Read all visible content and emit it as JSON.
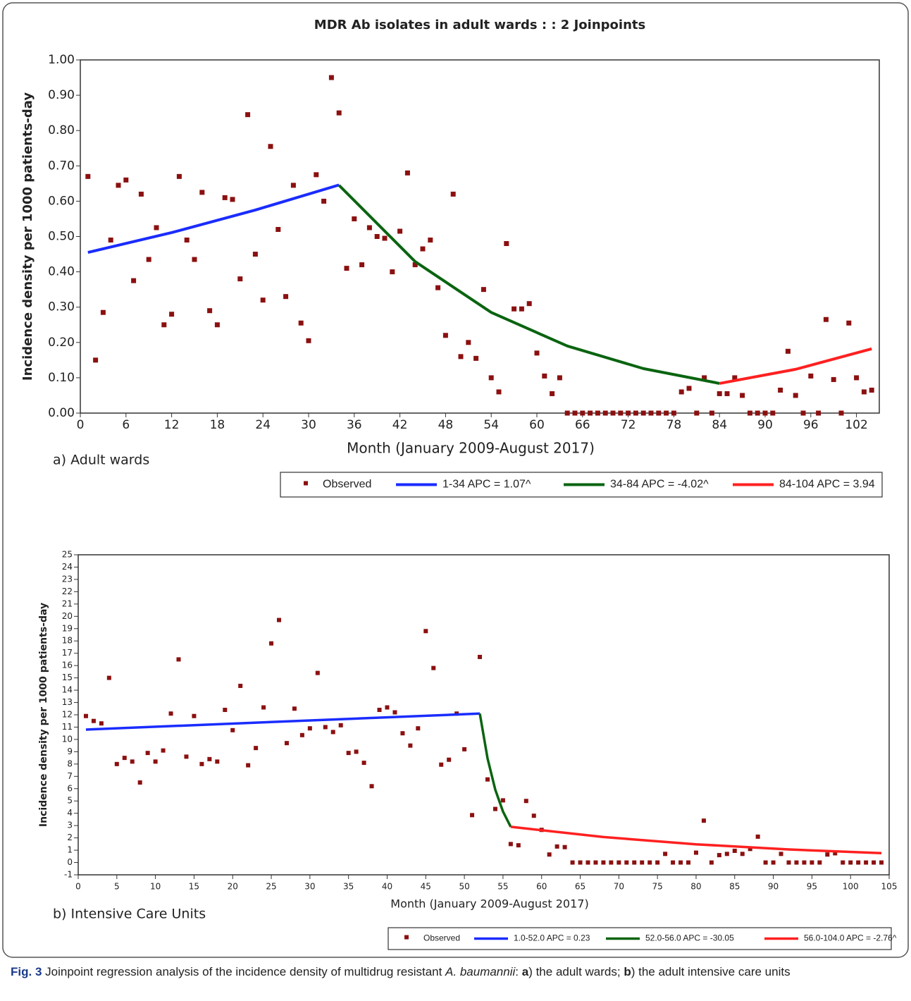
{
  "chart_data": [
    {
      "type": "scatter",
      "title": "MDR Ab isolates in adult wards : : 2 Joinpoints",
      "x_label": "Month (January 2009-August 2017)",
      "y_label": "Incidence density per 1000 patients-day",
      "panel_label": "a) Adult wards",
      "xlim": [
        0,
        105
      ],
      "ylim": [
        0,
        1
      ],
      "xticks": [
        0,
        6,
        12,
        18,
        24,
        30,
        36,
        42,
        48,
        54,
        60,
        66,
        72,
        78,
        84,
        90,
        96,
        102
      ],
      "yticks": [
        {
          "value": 0,
          "label": "0.00"
        },
        {
          "value": 0.1,
          "label": "0.10"
        },
        {
          "value": 0.2,
          "label": "0.20"
        },
        {
          "value": 0.3,
          "label": "0.30"
        },
        {
          "value": 0.4,
          "label": "0.40"
        },
        {
          "value": 0.5,
          "label": "0.50"
        },
        {
          "value": 0.6,
          "label": "0.60"
        },
        {
          "value": 0.7,
          "label": "0.70"
        },
        {
          "value": 0.8,
          "label": "0.80"
        },
        {
          "value": 0.9,
          "label": "0.90"
        },
        {
          "value": 1,
          "label": "1.00"
        }
      ],
      "series": [
        {
          "name": "Observed",
          "mode": "markers",
          "color": "#8b1010",
          "x": [
            1,
            2,
            3,
            4,
            5,
            6,
            7,
            8,
            9,
            10,
            11,
            12,
            13,
            14,
            15,
            16,
            17,
            18,
            19,
            20,
            21,
            22,
            23,
            24,
            25,
            26,
            27,
            28,
            29,
            30,
            31,
            32,
            33,
            34,
            35,
            36,
            37,
            38,
            39,
            40,
            41,
            42,
            43,
            44,
            45,
            46,
            47,
            48,
            49,
            50,
            51,
            52,
            53,
            54,
            55,
            56,
            57,
            58,
            59,
            60,
            61,
            62,
            63,
            64,
            65,
            66,
            67,
            68,
            69,
            70,
            71,
            72,
            73,
            74,
            75,
            76,
            77,
            78,
            79,
            80,
            81,
            82,
            83,
            84,
            85,
            86,
            87,
            88,
            89,
            90,
            91,
            92,
            93,
            94,
            95,
            96,
            97,
            98,
            99,
            100,
            101,
            102,
            103,
            104
          ],
          "values": [
            0.67,
            0.15,
            0.285,
            0.49,
            0.645,
            0.66,
            0.375,
            0.62,
            0.435,
            0.525,
            0.25,
            0.28,
            0.67,
            0.49,
            0.435,
            0.625,
            0.29,
            0.25,
            0.61,
            0.605,
            0.38,
            0.845,
            0.45,
            0.32,
            0.755,
            0.52,
            0.33,
            0.645,
            0.255,
            0.205,
            0.675,
            0.6,
            0.95,
            0.85,
            0.41,
            0.55,
            0.42,
            0.525,
            0.5,
            0.495,
            0.4,
            0.515,
            0.68,
            0.42,
            0.465,
            0.49,
            0.355,
            0.22,
            0.62,
            0.16,
            0.2,
            0.155,
            0.35,
            0.1,
            0.06,
            0.48,
            0.295,
            0.295,
            0.31,
            0.17,
            0.105,
            0.055,
            0.1,
            0,
            0,
            0,
            0,
            0,
            0,
            0,
            0,
            0,
            0,
            0,
            0,
            0,
            0,
            0,
            0.06,
            0.07,
            0,
            0.1,
            0,
            0.055,
            0.055,
            0.1,
            0.05,
            0,
            0,
            0,
            0,
            0.065,
            0.175,
            0.05,
            0,
            0.105,
            0,
            0.265,
            0.095,
            0,
            0.255,
            0.1,
            0.06,
            0.065
          ]
        },
        {
          "name": "1-34 APC = 1.07^",
          "mode": "lines",
          "color": "#1a2cff",
          "x": [
            1,
            12,
            23,
            34
          ],
          "values": [
            0.455,
            0.511,
            0.575,
            0.646
          ]
        },
        {
          "name": "34-84 APC = -4.02^",
          "mode": "lines",
          "color": "#0a6410",
          "x": [
            34,
            44,
            54,
            64,
            74,
            84
          ],
          "values": [
            0.645,
            0.429,
            0.285,
            0.19,
            0.126,
            0.084
          ]
        },
        {
          "name": "84-104 APC = 3.94",
          "mode": "lines",
          "color": "#ff2020",
          "x": [
            84,
            94,
            104
          ],
          "values": [
            0.084,
            0.124,
            0.182
          ]
        }
      ]
    },
    {
      "type": "scatter",
      "x_label": "Month (January 2009-August 2017)",
      "y_label": "Incidence density per 1000 patients-day",
      "panel_label": "b) Intensive Care Units",
      "xlim": [
        0,
        105
      ],
      "ylim": [
        -1,
        25
      ],
      "xticks": [
        0,
        5,
        10,
        15,
        20,
        25,
        30,
        35,
        40,
        45,
        50,
        55,
        60,
        65,
        70,
        75,
        80,
        85,
        90,
        95,
        100,
        105
      ],
      "yticks": [
        -1,
        0,
        1,
        2,
        3,
        4,
        5,
        6,
        7,
        8,
        9,
        10,
        11,
        12,
        13,
        14,
        15,
        16,
        17,
        18,
        19,
        20,
        21,
        22,
        23,
        24,
        25
      ],
      "series": [
        {
          "name": "Observed",
          "mode": "markers",
          "color": "#8b1010",
          "x": [
            1,
            2,
            3,
            4,
            5,
            6,
            7,
            8,
            9,
            10,
            11,
            12,
            13,
            14,
            15,
            16,
            17,
            18,
            19,
            20,
            21,
            22,
            23,
            24,
            25,
            26,
            27,
            28,
            29,
            30,
            31,
            32,
            33,
            34,
            35,
            36,
            37,
            38,
            39,
            40,
            41,
            42,
            43,
            44,
            45,
            46,
            47,
            48,
            49,
            50,
            51,
            52,
            53,
            54,
            55,
            56,
            57,
            58,
            59,
            60,
            61,
            62,
            63,
            64,
            65,
            66,
            67,
            68,
            69,
            70,
            71,
            72,
            73,
            74,
            75,
            76,
            77,
            78,
            79,
            80,
            81,
            82,
            83,
            84,
            85,
            86,
            87,
            88,
            89,
            90,
            91,
            92,
            93,
            94,
            95,
            96,
            97,
            98,
            99,
            100,
            101,
            102,
            103,
            104
          ],
          "values": [
            11.9,
            11.5,
            11.3,
            15,
            8,
            8.5,
            8.2,
            6.5,
            8.9,
            8.2,
            9.1,
            12.1,
            16.5,
            8.6,
            11.9,
            8,
            8.4,
            8.2,
            12.4,
            10.75,
            14.35,
            7.9,
            9.3,
            12.6,
            17.8,
            19.7,
            9.7,
            12.5,
            10.35,
            10.9,
            15.4,
            11,
            10.6,
            11.15,
            8.9,
            9,
            8.1,
            6.2,
            12.4,
            12.6,
            12.2,
            10.5,
            9.5,
            10.9,
            18.8,
            15.8,
            7.95,
            8.35,
            12.1,
            9.2,
            3.85,
            16.7,
            6.75,
            4.35,
            5.05,
            1.5,
            1.4,
            5,
            3.8,
            2.65,
            0.65,
            1.3,
            1.25,
            0,
            0,
            0,
            0,
            0,
            0,
            0,
            0,
            0,
            0,
            0,
            0,
            0.7,
            0,
            0,
            0,
            0.8,
            3.4,
            0,
            0.6,
            0.7,
            0.95,
            0.7,
            1.1,
            2.1,
            0,
            0,
            0.7,
            0,
            0,
            0,
            0,
            0,
            0.65,
            0.75,
            0,
            0,
            0,
            0,
            0,
            0
          ]
        },
        {
          "name": "1.0-52.0 APC = 0.23",
          "mode": "lines",
          "color": "#1a2cff",
          "x": [
            1,
            52
          ],
          "values": [
            10.8,
            12.1
          ]
        },
        {
          "name": "52.0-56.0 APC = -30.05",
          "mode": "lines",
          "color": "#0a6410",
          "x": [
            52,
            53,
            54,
            55,
            56
          ],
          "values": [
            12.1,
            8.46,
            5.92,
            4.14,
            2.9
          ]
        },
        {
          "name": "56.0-104.0 APC = -2.76^",
          "mode": "lines",
          "color": "#ff2020",
          "x": [
            56,
            68,
            80,
            92,
            104
          ],
          "values": [
            2.9,
            2.07,
            1.48,
            1.06,
            0.76
          ]
        }
      ]
    }
  ],
  "caption": [
    "Fig. 3",
    " Joinpoint regression analysis of the incidence density of multidrug resistant ",
    "A. baumannii",
    ": ",
    "a",
    ") the adult wards; ",
    "b",
    ") the adult intensive care units"
  ]
}
